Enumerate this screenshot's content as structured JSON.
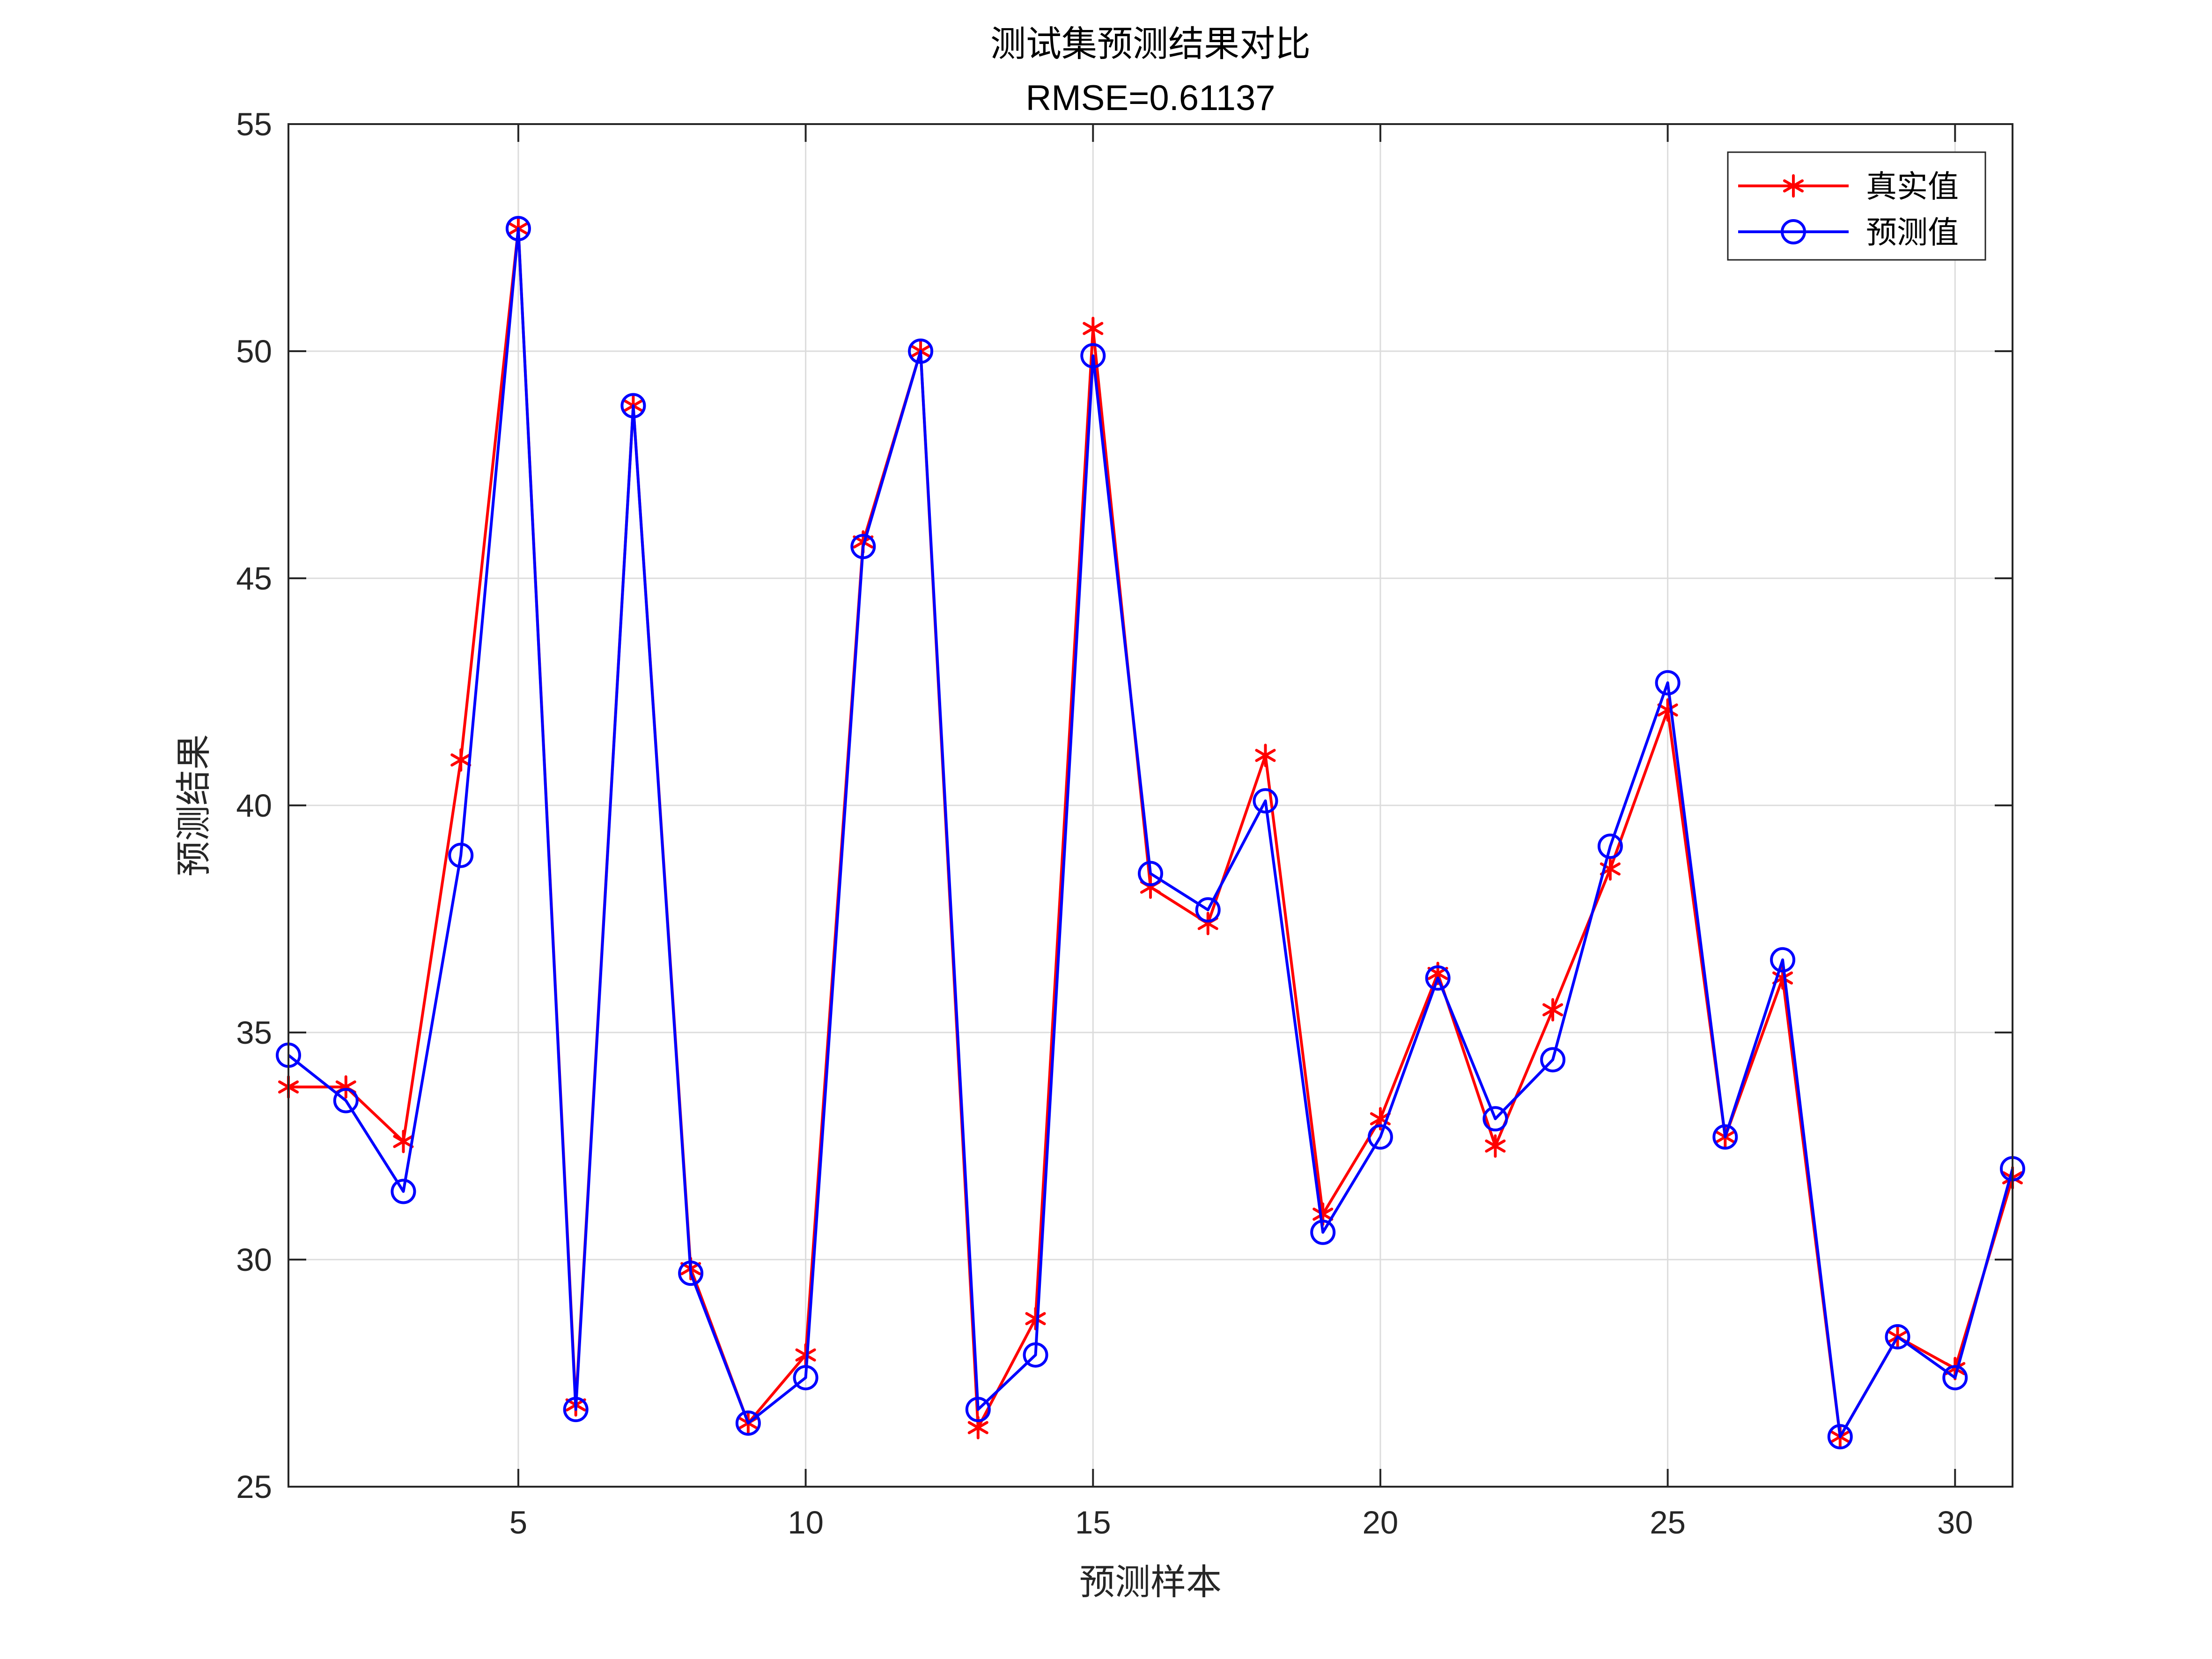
{
  "chart_data": {
    "type": "line",
    "title": "测试集预测结果对比",
    "subtitle": "RMSE=0.61137",
    "xlabel": "预测样本",
    "ylabel": "预测结果",
    "xlim": [
      1,
      31
    ],
    "ylim": [
      25,
      55
    ],
    "xticks": [
      5,
      10,
      15,
      20,
      25,
      30
    ],
    "yticks": [
      25,
      30,
      35,
      40,
      45,
      50,
      55
    ],
    "grid": true,
    "legend_position": "top-right",
    "x": [
      1,
      2,
      3,
      4,
      5,
      6,
      7,
      8,
      9,
      10,
      11,
      12,
      13,
      14,
      15,
      16,
      17,
      18,
      19,
      20,
      21,
      22,
      23,
      24,
      25,
      26,
      27,
      28,
      29,
      30,
      31
    ],
    "series": [
      {
        "name": "真实值",
        "color": "#ff0000",
        "marker": "asterisk",
        "values": [
          33.8,
          33.8,
          32.6,
          41.0,
          52.7,
          26.8,
          48.8,
          29.8,
          26.4,
          27.9,
          45.8,
          50.0,
          26.3,
          28.7,
          50.5,
          38.2,
          37.4,
          41.1,
          31.0,
          33.1,
          36.3,
          32.5,
          35.5,
          38.6,
          42.1,
          32.7,
          36.2,
          26.1,
          28.3,
          27.6,
          31.8
        ]
      },
      {
        "name": "预测值",
        "color": "#0000ff",
        "marker": "circle",
        "values": [
          34.5,
          33.5,
          31.5,
          38.9,
          52.7,
          26.7,
          48.8,
          29.7,
          26.4,
          27.4,
          45.7,
          50.0,
          26.7,
          27.9,
          49.9,
          38.5,
          37.7,
          40.1,
          30.6,
          32.7,
          36.2,
          33.1,
          34.4,
          39.1,
          42.7,
          32.7,
          36.6,
          26.1,
          28.3,
          27.4,
          32.0
        ]
      }
    ]
  }
}
